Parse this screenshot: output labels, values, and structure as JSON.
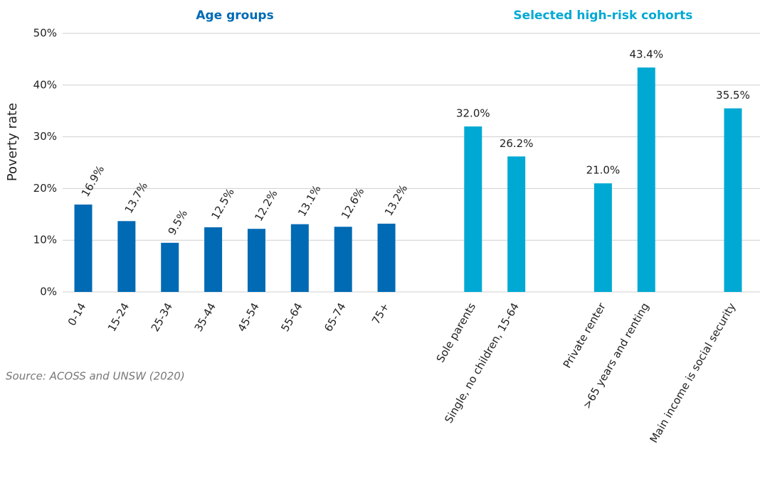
{
  "chart_data": {
    "type": "bar",
    "y_label": "Poverty rate",
    "source": "Source:  ACOSS and UNSW (2020)",
    "categories": [
      "0-14",
      "15-24",
      "25-34",
      "35-44",
      "45-54",
      "55-64",
      "65-74",
      "75+",
      null,
      "Sole parents",
      "Single, no children, 15-64",
      null,
      "Private renter",
      ">65 years and renting",
      null,
      "Main income is social security"
    ],
    "series": [
      {
        "name": "Age groups",
        "color": "#006ab4",
        "values": [
          16.9,
          13.7,
          9.5,
          12.5,
          12.2,
          13.1,
          12.6,
          13.2,
          null,
          null,
          null,
          null,
          null,
          null,
          null,
          null
        ],
        "value_labels": [
          "16.9%",
          "13.7%",
          "9.5%",
          "12.5%",
          "12.2%",
          "13.1%",
          "12.6%",
          "13.2%",
          null,
          null,
          null,
          null,
          null,
          null,
          null,
          null
        ]
      },
      {
        "name": "Selected high-risk cohorts",
        "color": "#00a9d4",
        "values": [
          null,
          null,
          null,
          null,
          null,
          null,
          null,
          null,
          null,
          32.0,
          26.2,
          null,
          21.0,
          43.4,
          null,
          35.5
        ],
        "value_labels": [
          null,
          null,
          null,
          null,
          null,
          null,
          null,
          null,
          null,
          "32.0%",
          "26.2%",
          null,
          "21.0%",
          "43.4%",
          null,
          "35.5%"
        ]
      }
    ],
    "ylim": [
      0,
      50
    ],
    "yticks": [
      {
        "value": 0,
        "label": "0%"
      },
      {
        "value": 10,
        "label": "10%"
      },
      {
        "value": 20,
        "label": "20%"
      },
      {
        "value": 30,
        "label": "30%"
      },
      {
        "value": 40,
        "label": "40%"
      },
      {
        "value": 50,
        "label": "50%"
      }
    ],
    "grid": true
  }
}
